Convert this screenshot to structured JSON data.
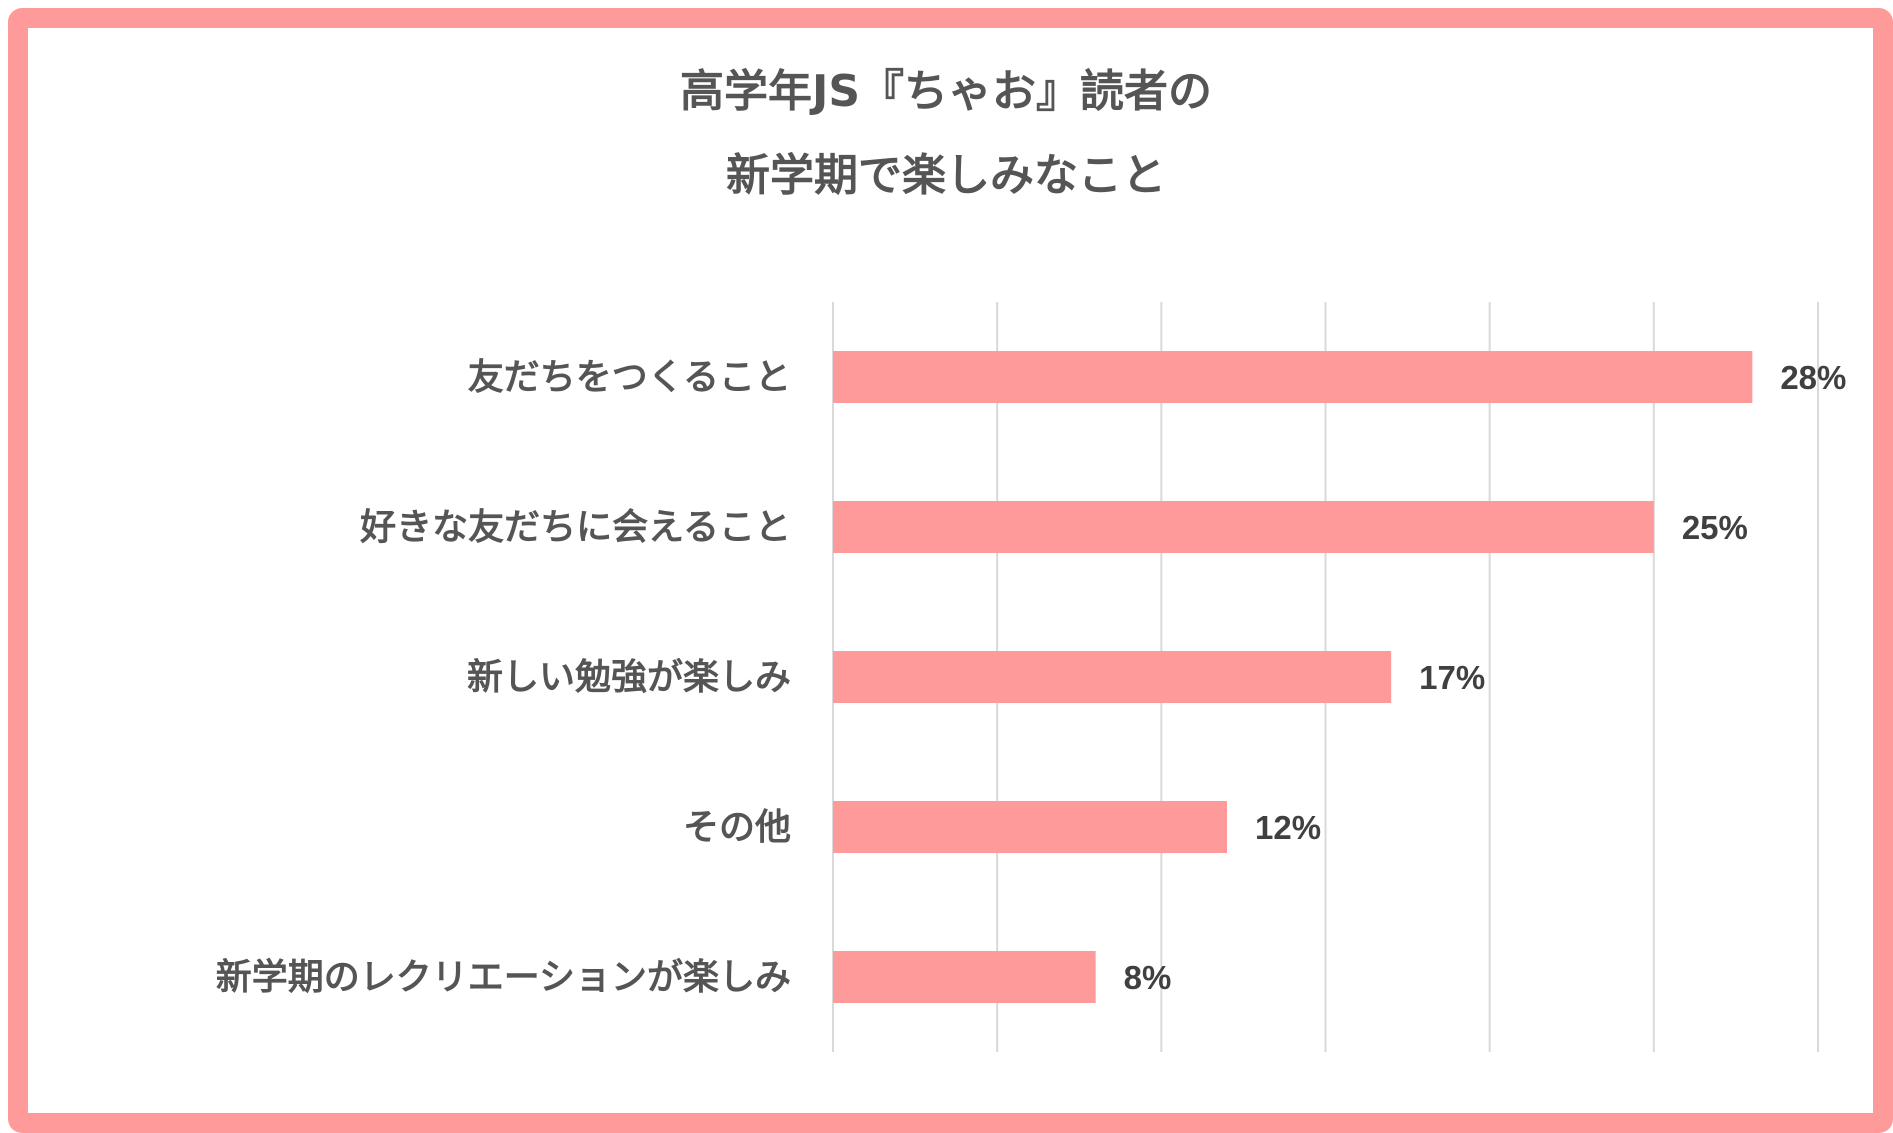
{
  "chart_data": {
    "type": "bar",
    "orientation": "horizontal",
    "title": [
      "高学年JS『ちゃお』読者の",
      "新学期で楽しみなこと"
    ],
    "categories": [
      "友だちをつくること",
      "好きな友だちに会えること",
      "新しい勉強が楽しみ",
      "その他",
      "新学期のレクリエーションが楽しみ"
    ],
    "values": [
      28,
      25,
      17,
      12,
      8
    ],
    "value_labels": [
      "28%",
      "25%",
      "17%",
      "12%",
      "8%"
    ],
    "xlim": [
      0,
      30
    ],
    "grid": true,
    "legend": "none",
    "xlabel": "",
    "ylabel": "",
    "colors": {
      "bar": "#ff9a9a",
      "frame": "#ff9a9a",
      "grid": "#d9d9d9",
      "title": "#555555",
      "label": "#555555",
      "value": "#404040"
    }
  }
}
